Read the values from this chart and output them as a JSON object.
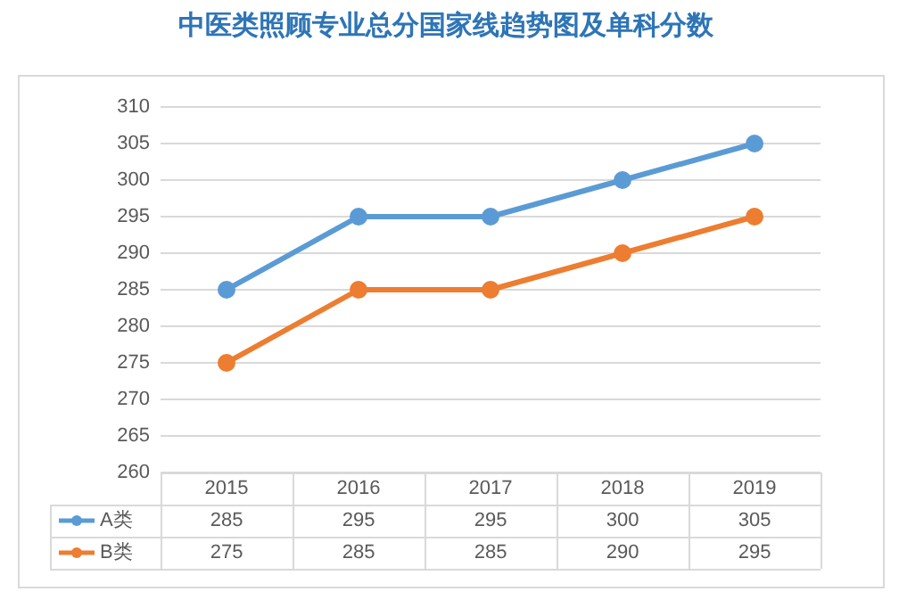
{
  "chart_data": {
    "type": "line",
    "title": "中医类照顾专业总分国家线趋势图及单科分数",
    "categories": [
      "2015",
      "2016",
      "2017",
      "2018",
      "2019"
    ],
    "series": [
      {
        "name": "A类",
        "color": "#5b9bd5",
        "values": [
          285,
          295,
          295,
          300,
          305
        ]
      },
      {
        "name": "B类",
        "color": "#ed7d31",
        "values": [
          275,
          285,
          285,
          290,
          295
        ]
      }
    ],
    "ylim": [
      260,
      310
    ],
    "yticks": [
      260,
      265,
      270,
      275,
      280,
      285,
      290,
      295,
      300,
      305,
      310
    ],
    "grid": "y",
    "legend": "bottom",
    "marker": "circle",
    "line_style": "solid",
    "data_labels": true
  }
}
